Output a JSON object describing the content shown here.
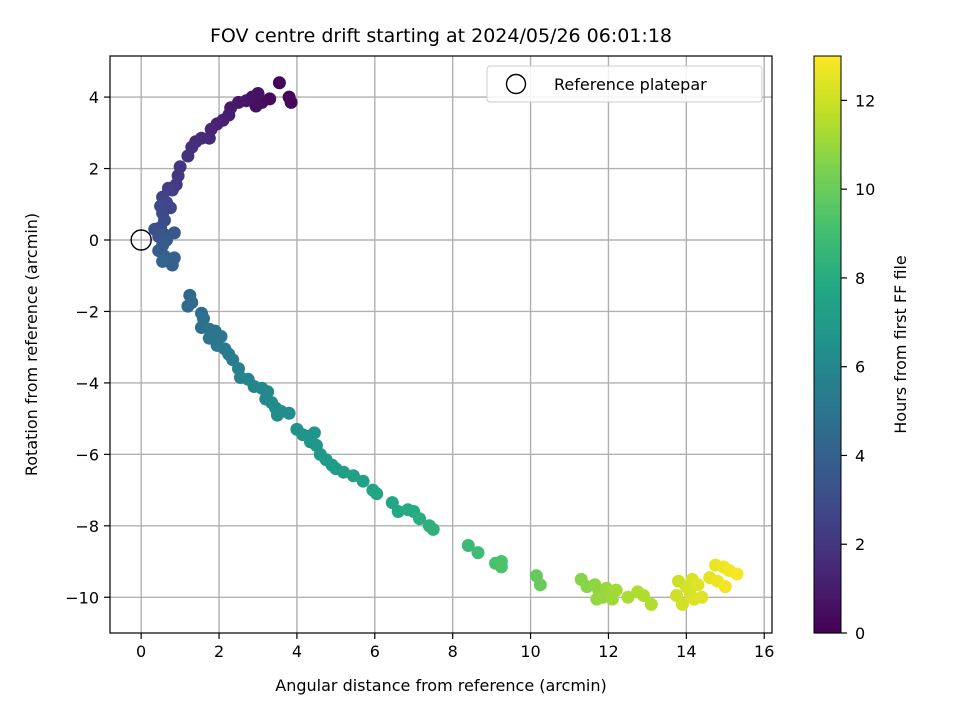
{
  "chart_data": {
    "type": "scatter",
    "title": "FOV centre drift starting at 2024/05/26 06:01:18",
    "xlabel": "Angular distance from reference (arcmin)",
    "ylabel": "Rotation from reference (arcmin)",
    "xlim": [
      -0.8,
      16.2
    ],
    "ylim": [
      -11,
      5.15
    ],
    "xticks": [
      0,
      2,
      4,
      6,
      8,
      10,
      12,
      14,
      16
    ],
    "yticks": [
      -10,
      -8,
      -6,
      -4,
      -2,
      0,
      2,
      4
    ],
    "xtick_labels": [
      "0",
      "2",
      "4",
      "6",
      "8",
      "10",
      "12",
      "14",
      "16"
    ],
    "ytick_labels": [
      "−10",
      "−8",
      "−6",
      "−4",
      "−2",
      "0",
      "2",
      "4"
    ],
    "grid": true,
    "legend": {
      "placement": "top-right",
      "entries": [
        {
          "label": "Reference platepar",
          "marker": "open-circle"
        }
      ]
    },
    "reference_point": {
      "x": 0,
      "y": 0,
      "label": "Reference platepar"
    },
    "colorbar": {
      "label": "Hours from first FF file",
      "colormap": "viridis",
      "range": [
        0,
        13
      ],
      "ticks": [
        0,
        2,
        4,
        6,
        8,
        10,
        12
      ],
      "tick_labels": [
        "0",
        "2",
        "4",
        "6",
        "8",
        "10",
        "12"
      ]
    },
    "points": [
      [
        3.55,
        4.4,
        0.1
      ],
      [
        3.8,
        4.0,
        0.2
      ],
      [
        3.85,
        3.85,
        0.25
      ],
      [
        3.3,
        3.95,
        0.35
      ],
      [
        3.1,
        3.85,
        0.45
      ],
      [
        2.95,
        3.75,
        0.55
      ],
      [
        2.85,
        4.0,
        0.6
      ],
      [
        3.0,
        4.1,
        0.65
      ],
      [
        2.7,
        3.9,
        0.75
      ],
      [
        2.5,
        3.85,
        0.85
      ],
      [
        2.3,
        3.7,
        0.95
      ],
      [
        2.25,
        3.5,
        1.05
      ],
      [
        2.1,
        3.35,
        1.15
      ],
      [
        1.95,
        3.25,
        1.25
      ],
      [
        1.8,
        3.1,
        1.35
      ],
      [
        1.75,
        2.85,
        1.45
      ],
      [
        1.55,
        2.85,
        1.55
      ],
      [
        1.4,
        2.75,
        1.65
      ],
      [
        1.3,
        2.6,
        1.75
      ],
      [
        1.2,
        2.35,
        1.85
      ],
      [
        1.0,
        2.05,
        2.0
      ],
      [
        0.95,
        1.8,
        2.1
      ],
      [
        0.9,
        1.55,
        2.2
      ],
      [
        0.8,
        1.4,
        2.3
      ],
      [
        0.7,
        1.45,
        2.4
      ],
      [
        0.55,
        1.2,
        2.5
      ],
      [
        0.65,
        1.05,
        2.6
      ],
      [
        0.75,
        0.9,
        2.7
      ],
      [
        0.5,
        0.95,
        2.8
      ],
      [
        0.55,
        0.75,
        2.9
      ],
      [
        0.6,
        0.55,
        3.0
      ],
      [
        0.5,
        0.35,
        3.1
      ],
      [
        0.35,
        0.3,
        3.2
      ],
      [
        0.45,
        0.1,
        3.3
      ],
      [
        0.6,
        0.15,
        3.4
      ],
      [
        0.85,
        0.2,
        3.5
      ],
      [
        0.65,
        0.0,
        3.6
      ],
      [
        0.55,
        -0.15,
        3.7
      ],
      [
        0.45,
        -0.3,
        3.8
      ],
      [
        0.6,
        -0.45,
        3.9
      ],
      [
        0.85,
        -0.5,
        4.0
      ],
      [
        0.8,
        -0.7,
        4.1
      ],
      [
        0.55,
        -0.6,
        4.15
      ],
      [
        1.25,
        -1.55,
        4.3
      ],
      [
        1.3,
        -1.75,
        4.4
      ],
      [
        1.2,
        -1.85,
        4.5
      ],
      [
        1.55,
        -2.05,
        4.6
      ],
      [
        1.6,
        -2.2,
        4.7
      ],
      [
        1.55,
        -2.45,
        4.8
      ],
      [
        1.75,
        -2.5,
        4.9
      ],
      [
        1.9,
        -2.55,
        5.0
      ],
      [
        1.75,
        -2.75,
        5.1
      ],
      [
        2.05,
        -2.7,
        5.15
      ],
      [
        1.95,
        -2.95,
        5.2
      ],
      [
        2.15,
        -3.05,
        5.3
      ],
      [
        2.25,
        -3.2,
        5.4
      ],
      [
        2.35,
        -3.35,
        5.5
      ],
      [
        2.5,
        -3.6,
        5.6
      ],
      [
        2.55,
        -3.85,
        5.7
      ],
      [
        2.75,
        -3.9,
        5.8
      ],
      [
        2.9,
        -4.1,
        5.9
      ],
      [
        3.1,
        -4.15,
        6.0
      ],
      [
        3.25,
        -4.25,
        6.05
      ],
      [
        3.2,
        -4.45,
        6.1
      ],
      [
        3.35,
        -4.55,
        6.15
      ],
      [
        3.45,
        -4.7,
        6.2
      ],
      [
        3.6,
        -4.8,
        6.25
      ],
      [
        3.8,
        -4.85,
        6.3
      ],
      [
        3.5,
        -4.9,
        6.35
      ],
      [
        4.0,
        -5.3,
        6.5
      ],
      [
        4.15,
        -5.45,
        6.6
      ],
      [
        4.3,
        -5.5,
        6.65
      ],
      [
        4.45,
        -5.4,
        6.7
      ],
      [
        4.35,
        -5.65,
        6.75
      ],
      [
        4.5,
        -5.75,
        6.8
      ],
      [
        4.6,
        -6.0,
        6.9
      ],
      [
        4.75,
        -6.15,
        7.0
      ],
      [
        4.9,
        -6.3,
        7.05
      ],
      [
        5.0,
        -6.4,
        7.1
      ],
      [
        5.2,
        -6.5,
        7.2
      ],
      [
        5.45,
        -6.6,
        7.3
      ],
      [
        5.7,
        -6.75,
        7.4
      ],
      [
        5.95,
        -7.0,
        7.5
      ],
      [
        6.05,
        -7.1,
        7.55
      ],
      [
        6.45,
        -7.35,
        7.7
      ],
      [
        6.6,
        -7.6,
        7.8
      ],
      [
        6.85,
        -7.55,
        7.9
      ],
      [
        7.0,
        -7.6,
        8.0
      ],
      [
        7.15,
        -7.8,
        8.1
      ],
      [
        7.4,
        -8.0,
        8.2
      ],
      [
        7.5,
        -8.1,
        8.25
      ],
      [
        8.4,
        -8.55,
        8.8
      ],
      [
        8.65,
        -8.75,
        8.9
      ],
      [
        9.1,
        -9.05,
        9.2
      ],
      [
        9.25,
        -9.0,
        9.3
      ],
      [
        9.25,
        -9.15,
        9.35
      ],
      [
        10.15,
        -9.4,
        9.9
      ],
      [
        10.25,
        -9.65,
        10.0
      ],
      [
        11.3,
        -9.5,
        10.6
      ],
      [
        11.45,
        -9.7,
        10.7
      ],
      [
        11.65,
        -9.65,
        10.8
      ],
      [
        11.75,
        -9.8,
        10.85
      ],
      [
        11.85,
        -10.0,
        10.9
      ],
      [
        11.7,
        -10.05,
        10.95
      ],
      [
        11.95,
        -9.75,
        11.0
      ],
      [
        12.05,
        -9.9,
        11.05
      ],
      [
        12.1,
        -10.05,
        11.1
      ],
      [
        12.2,
        -9.8,
        11.15
      ],
      [
        12.5,
        -10.0,
        11.3
      ],
      [
        12.75,
        -9.85,
        11.4
      ],
      [
        12.9,
        -9.95,
        11.45
      ],
      [
        13.1,
        -10.2,
        11.5
      ],
      [
        13.8,
        -9.55,
        12.0
      ],
      [
        13.75,
        -9.95,
        12.05
      ],
      [
        13.9,
        -10.2,
        12.1
      ],
      [
        14.0,
        -9.7,
        12.15
      ],
      [
        14.1,
        -9.9,
        12.2
      ],
      [
        14.15,
        -9.5,
        12.25
      ],
      [
        14.2,
        -10.05,
        12.3
      ],
      [
        14.3,
        -9.65,
        12.35
      ],
      [
        14.4,
        -10.0,
        12.4
      ],
      [
        14.6,
        -9.45,
        12.5
      ],
      [
        14.75,
        -9.1,
        12.6
      ],
      [
        14.8,
        -9.55,
        12.65
      ],
      [
        14.95,
        -9.15,
        12.7
      ],
      [
        15.0,
        -9.7,
        12.75
      ],
      [
        15.1,
        -9.25,
        12.8
      ],
      [
        15.3,
        -9.35,
        12.9
      ]
    ]
  }
}
